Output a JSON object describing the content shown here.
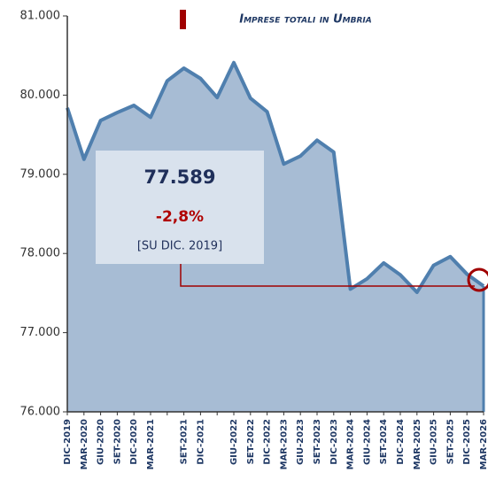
{
  "chart_data": {
    "type": "area",
    "title": "Imprese totali in Umbria",
    "categories": [
      "DIC-2019",
      "MAR-2020",
      "GIU-2020",
      "SET-2020",
      "DIC-2020",
      "MAR-2021",
      null,
      "SET-2021",
      "DIC-2021",
      null,
      "GIU-2022",
      "SET-2022",
      "DIC-2022",
      "MAR-2023",
      "GIU-2023",
      "SET-2023",
      "DIC-2023",
      "MAR-2024",
      "GIU-2024",
      "SET-2024",
      "DIC-2024",
      "MAR-2025",
      "GIU-2025",
      "SET-2025",
      "DIC-2025",
      "MAR-2026"
    ],
    "values": [
      79840,
      79190,
      79680,
      79780,
      79870,
      79720,
      80180,
      80340,
      80210,
      79970,
      80410,
      79960,
      79790,
      79130,
      79230,
      79430,
      79280,
      77550,
      77680,
      77880,
      77730,
      77510,
      77850,
      77960,
      77740,
      77589
    ],
    "color": "#4f7fae",
    "fill": "#a7bcd4",
    "ylim": [
      76000,
      81000
    ],
    "yticks": [
      {
        "value": 76000,
        "label": "76.000"
      },
      {
        "value": 77000,
        "label": "77.000"
      },
      {
        "value": 78000,
        "label": "78.000"
      },
      {
        "value": 79000,
        "label": "79.000"
      },
      {
        "value": 80000,
        "label": "80.000"
      },
      {
        "value": 81000,
        "label": "81.000"
      }
    ],
    "annotation": {
      "value": "77.589",
      "change": "-2,8%",
      "note": "[SU DIC. 2019]"
    }
  }
}
